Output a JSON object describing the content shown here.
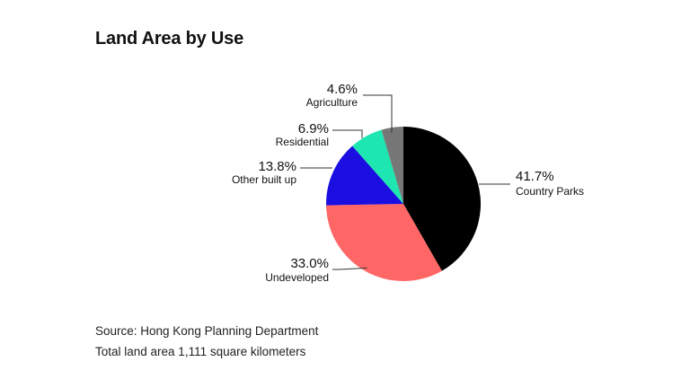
{
  "chart_data": {
    "type": "pie",
    "title": "Land Area by Use",
    "start_angle_deg": 0,
    "direction": "clockwise",
    "slices": [
      {
        "label": "Country Parks",
        "value": 41.7,
        "value_label": "41.7%",
        "color": "#000000"
      },
      {
        "label": "Undeveloped",
        "value": 33.0,
        "value_label": "33.0%",
        "color": "#ff6666"
      },
      {
        "label": "Other built up",
        "value": 13.8,
        "value_label": "13.8%",
        "color": "#1a0fe0"
      },
      {
        "label": "Residential",
        "value": 6.9,
        "value_label": "6.9%",
        "color": "#1de6b0"
      },
      {
        "label": "Agriculture",
        "value": 4.6,
        "value_label": "4.6%",
        "color": "#777777"
      }
    ]
  },
  "footer": {
    "source": "Source: Hong Kong Planning Department",
    "note": "Total land area 1,111 square kilometers"
  }
}
